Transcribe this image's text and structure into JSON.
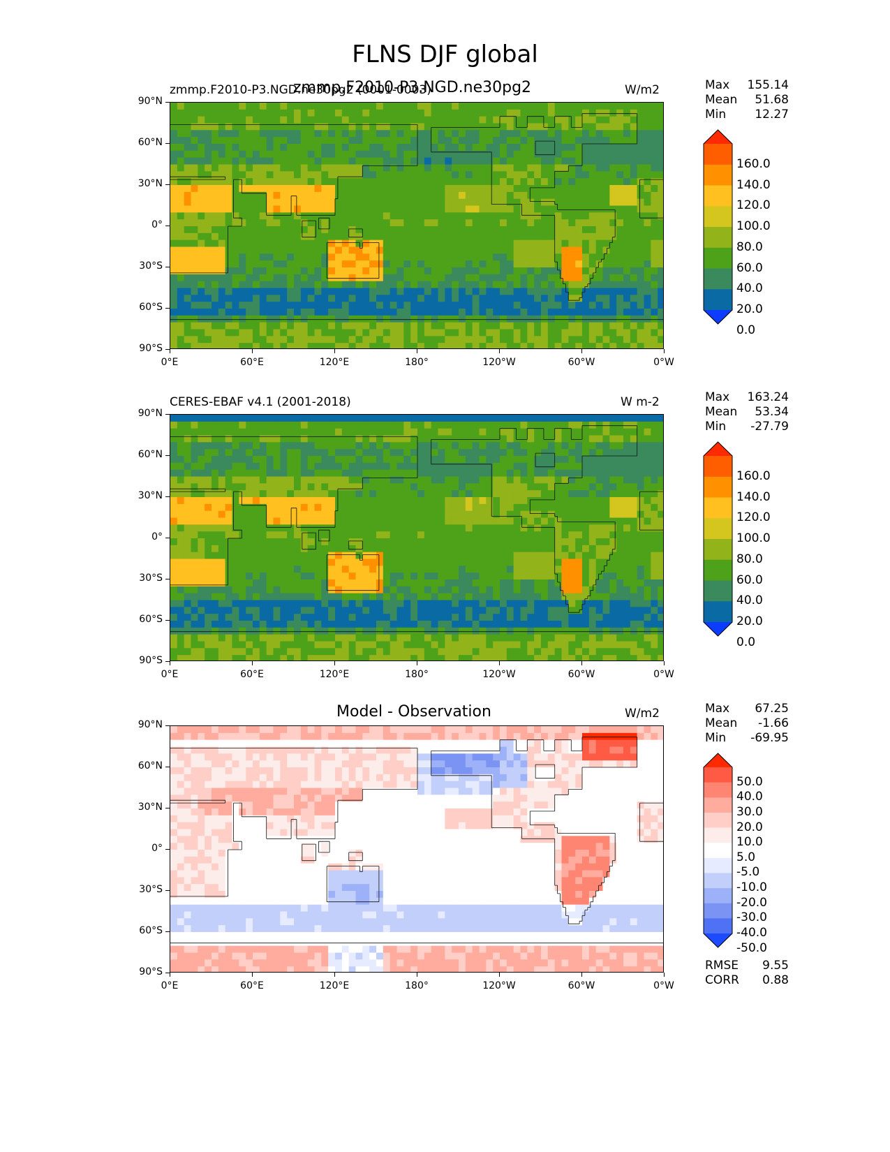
{
  "figure": {
    "title": "FLNS DJF global"
  },
  "axes": {
    "lat_ticks": [
      "90°N",
      "60°N",
      "30°N",
      "0°",
      "30°S",
      "60°S",
      "90°S"
    ],
    "lon_ticks": [
      "0°E",
      "60°E",
      "120°E",
      "180°",
      "120°W",
      "60°W",
      "0°W"
    ]
  },
  "panels": [
    {
      "left_label": "zmmp.F2010-P3.NGD.ne30pg2 (0001-0003)",
      "center_label": "zmmp.F2010-P3.NGD.ne30pg2",
      "units": "W/m2",
      "stats": [
        {
          "k": "Max",
          "v": "155.14"
        },
        {
          "k": "Mean",
          "v": "51.68"
        },
        {
          "k": "Min",
          "v": "12.27"
        }
      ],
      "extra": [],
      "cbar_labels": [
        "160.0",
        "140.0",
        "120.0",
        "100.0",
        "80.0",
        "60.0",
        "40.0",
        "20.0",
        "0.0"
      ],
      "cbar_colors": [
        "#ff2a00",
        "#ff5e00",
        "#ff9000",
        "#ffc020",
        "#d4c61e",
        "#93b31b",
        "#4da21a",
        "#3a8a5e",
        "#0a6aa4",
        "#0b3cff"
      ],
      "field": "model"
    },
    {
      "left_label": "CERES-EBAF v4.1 (2001-2018)",
      "center_label": "",
      "units": "W m-2",
      "stats": [
        {
          "k": "Max",
          "v": "163.24"
        },
        {
          "k": "Mean",
          "v": "53.34"
        },
        {
          "k": "Min",
          "v": "-27.79"
        }
      ],
      "extra": [],
      "cbar_labels": [
        "160.0",
        "140.0",
        "120.0",
        "100.0",
        "80.0",
        "60.0",
        "40.0",
        "20.0",
        "0.0"
      ],
      "cbar_colors": [
        "#ff2a00",
        "#ff5e00",
        "#ff9000",
        "#ffc020",
        "#d4c61e",
        "#93b31b",
        "#4da21a",
        "#3a8a5e",
        "#0a6aa4",
        "#0b3cff"
      ],
      "field": "obs"
    },
    {
      "left_label": "",
      "center_label": "Model - Observation",
      "units": "W/m2",
      "stats": [
        {
          "k": "Max",
          "v": "67.25"
        },
        {
          "k": "Mean",
          "v": "-1.66"
        },
        {
          "k": "Min",
          "v": "-69.95"
        }
      ],
      "extra": [
        {
          "k": "RMSE",
          "v": "9.55"
        },
        {
          "k": "CORR",
          "v": "0.88"
        }
      ],
      "cbar_labels": [
        "50.0",
        "40.0",
        "30.0",
        "20.0",
        "10.0",
        "5.0",
        "-5.0",
        "-10.0",
        "-20.0",
        "-30.0",
        "-40.0",
        "-50.0"
      ],
      "cbar_colors": [
        "#ff2a00",
        "#ff5a44",
        "#ff8573",
        "#ffab9d",
        "#ffcfc7",
        "#fcecea",
        "#ffffff",
        "#e6ebff",
        "#c3cffb",
        "#9db1f8",
        "#7b94f4",
        "#4f71f3",
        "#1d4bff"
      ],
      "field": "diff"
    }
  ],
  "chart_data": [
    {
      "type": "heatmap",
      "title": "zmmp.F2010-P3.NGD.ne30pg2",
      "subtitle": "zmmp.F2010-P3.NGD.ne30pg2 (0001-0003)",
      "units": "W/m2",
      "xlim": [
        0,
        360
      ],
      "ylim": [
        -90,
        90
      ],
      "stats": {
        "max": 155.14,
        "mean": 51.68,
        "min": 12.27
      },
      "levels": [
        0,
        20,
        40,
        60,
        80,
        100,
        120,
        140,
        160
      ]
    },
    {
      "type": "heatmap",
      "title": "CERES-EBAF v4.1 (2001-2018)",
      "units": "W m-2",
      "xlim": [
        0,
        360
      ],
      "ylim": [
        -90,
        90
      ],
      "stats": {
        "max": 163.24,
        "mean": 53.34,
        "min": -27.79
      },
      "levels": [
        0,
        20,
        40,
        60,
        80,
        100,
        120,
        140,
        160
      ]
    },
    {
      "type": "heatmap",
      "title": "Model - Observation",
      "units": "W/m2",
      "xlim": [
        0,
        360
      ],
      "ylim": [
        -90,
        90
      ],
      "stats": {
        "max": 67.25,
        "mean": -1.66,
        "min": -69.95,
        "rmse": 9.55,
        "corr": 0.88
      },
      "levels": [
        -50,
        -40,
        -30,
        -20,
        -10,
        -5,
        5,
        10,
        20,
        30,
        40,
        50
      ]
    }
  ]
}
